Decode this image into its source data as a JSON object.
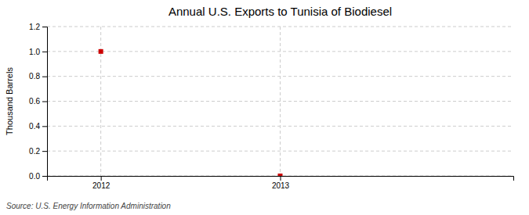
{
  "chart_data": {
    "type": "scatter",
    "title": "Annual U.S. Exports to Tunisia of Biodiesel",
    "y_label": "Thousand Barrels",
    "source": "Source: U.S. Energy Information Administration",
    "x": [
      2012,
      2013
    ],
    "values": [
      1.0,
      0.0
    ],
    "color": "#cc0000",
    "marker": "square",
    "xlim": [
      2011.7,
      2014.3
    ],
    "ylim": [
      0.0,
      1.2
    ],
    "xticks": [
      2012,
      2013
    ],
    "yticks": [
      {
        "value": 0.0,
        "label": "0.0"
      },
      0.2,
      0.4,
      0.6,
      0.8,
      {
        "value": 1.0,
        "label": "1.0"
      },
      1.2
    ],
    "grid": true
  }
}
